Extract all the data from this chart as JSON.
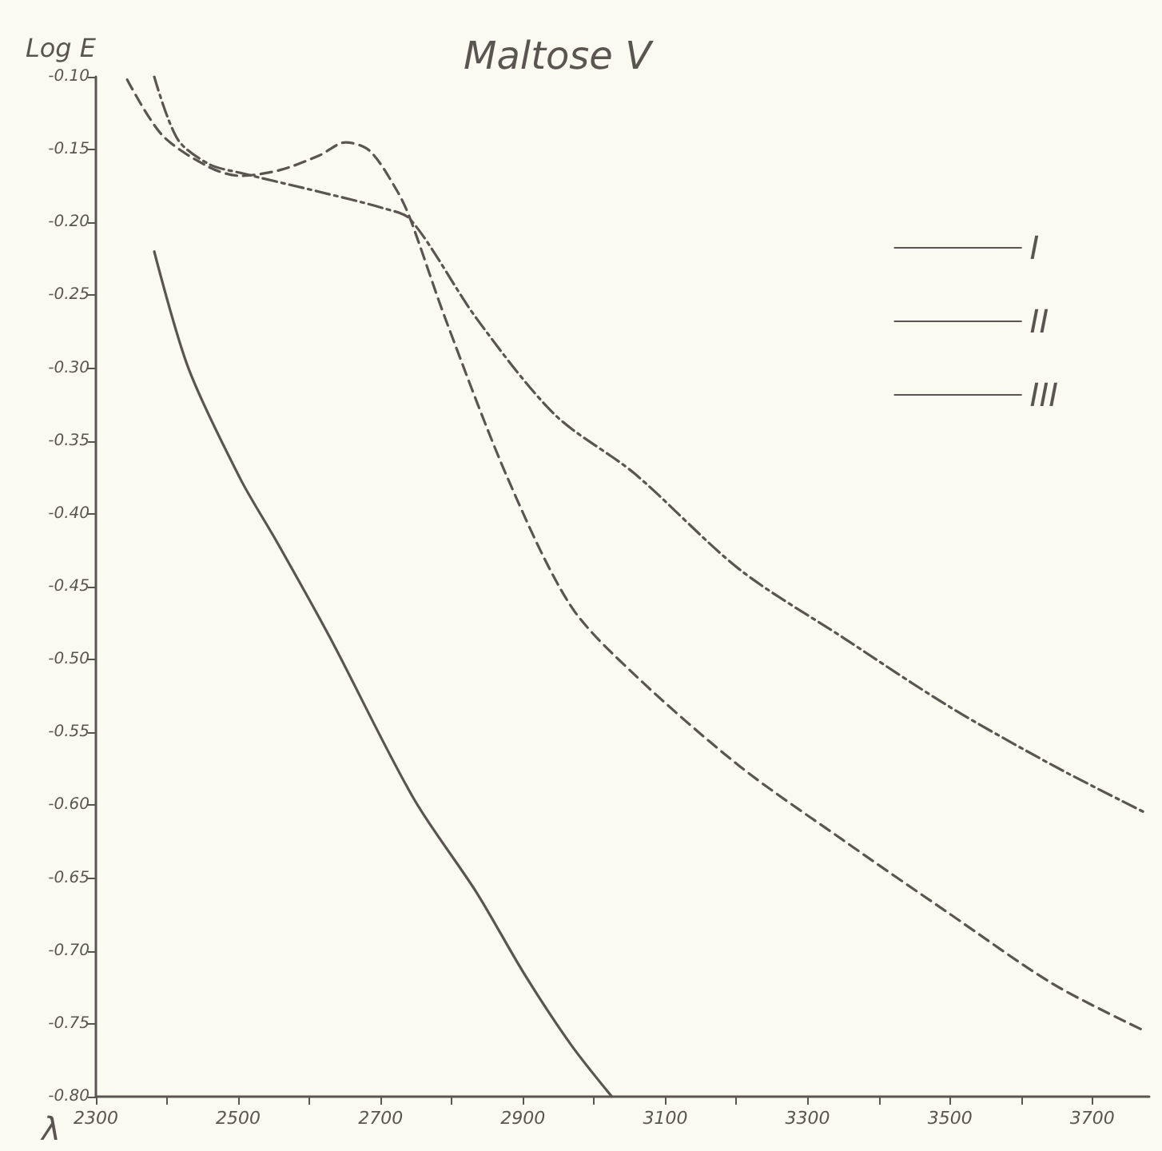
{
  "chart_data": {
    "type": "line",
    "title": "Maltose V",
    "xlabel": "λ",
    "ylabel": "Log E",
    "xlim": [
      2300,
      3780
    ],
    "xticks": [
      2300,
      {
        "value": 2400,
        "label": null
      },
      2500,
      {
        "value": 2600,
        "label": null
      },
      2700,
      {
        "value": 2800,
        "label": null
      },
      2900,
      {
        "value": 3000,
        "label": null
      },
      3100,
      {
        "value": 3200,
        "label": null
      },
      3300,
      {
        "value": 3400,
        "label": null
      },
      3500,
      {
        "value": 3600,
        "label": null
      },
      3700
    ],
    "ylim": [
      -0.8,
      -0.1
    ],
    "yticks": [
      {
        "value": -0.1,
        "label": "-0.10"
      },
      {
        "value": -0.15,
        "label": "-0.15"
      },
      {
        "value": -0.2,
        "label": "-0.20"
      },
      {
        "value": -0.25,
        "label": "-0.25"
      },
      {
        "value": -0.3,
        "label": "-0.30"
      },
      {
        "value": -0.35,
        "label": "-0.35"
      },
      {
        "value": -0.4,
        "label": "-0.40"
      },
      {
        "value": -0.45,
        "label": "-0.45"
      },
      {
        "value": -0.5,
        "label": "-0.50"
      },
      {
        "value": -0.55,
        "label": "-0.55"
      },
      {
        "value": -0.6,
        "label": "-0.60"
      },
      {
        "value": -0.65,
        "label": "-0.65"
      },
      {
        "value": -0.7,
        "label": "-0.70"
      },
      {
        "value": -0.75,
        "label": "-0.75"
      },
      {
        "value": -0.8,
        "label": "-0.80"
      }
    ],
    "grid": false,
    "legend": "top right",
    "marker": "none",
    "series": [
      {
        "name": "I",
        "color": "#5a5550",
        "line_style": "solid",
        "x": [
          2382,
          2430,
          2503,
          2554,
          2629,
          2746,
          2835,
          2901,
          2967,
          3025
        ],
        "values": [
          -0.22,
          -0.3,
          -0.376,
          -0.419,
          -0.485,
          -0.595,
          -0.66,
          -0.715,
          -0.764,
          -0.8
        ]
      },
      {
        "name": "II",
        "color": "#5a5550",
        "line_style": "dashed",
        "x": [
          2344,
          2393,
          2459,
          2503,
          2559,
          2614,
          2651,
          2685,
          2724,
          2742,
          2791,
          2879,
          2967,
          3056,
          3204,
          3350,
          3498,
          3646,
          3774
        ],
        "values": [
          -0.102,
          -0.14,
          -0.162,
          -0.168,
          -0.164,
          -0.154,
          -0.145,
          -0.151,
          -0.179,
          -0.198,
          -0.266,
          -0.376,
          -0.463,
          -0.51,
          -0.573,
          -0.624,
          -0.674,
          -0.723,
          -0.755
        ]
      },
      {
        "name": "III",
        "color": "#5a5550",
        "line_style": "dashdot",
        "x": [
          2382,
          2415,
          2459,
          2503,
          2614,
          2702,
          2742,
          2835,
          2945,
          3056,
          3204,
          3350,
          3498,
          3646,
          3774
        ],
        "values": [
          -0.1,
          -0.143,
          -0.16,
          -0.166,
          -0.179,
          -0.19,
          -0.198,
          -0.266,
          -0.332,
          -0.372,
          -0.438,
          -0.485,
          -0.532,
          -0.573,
          -0.605
        ]
      }
    ]
  }
}
